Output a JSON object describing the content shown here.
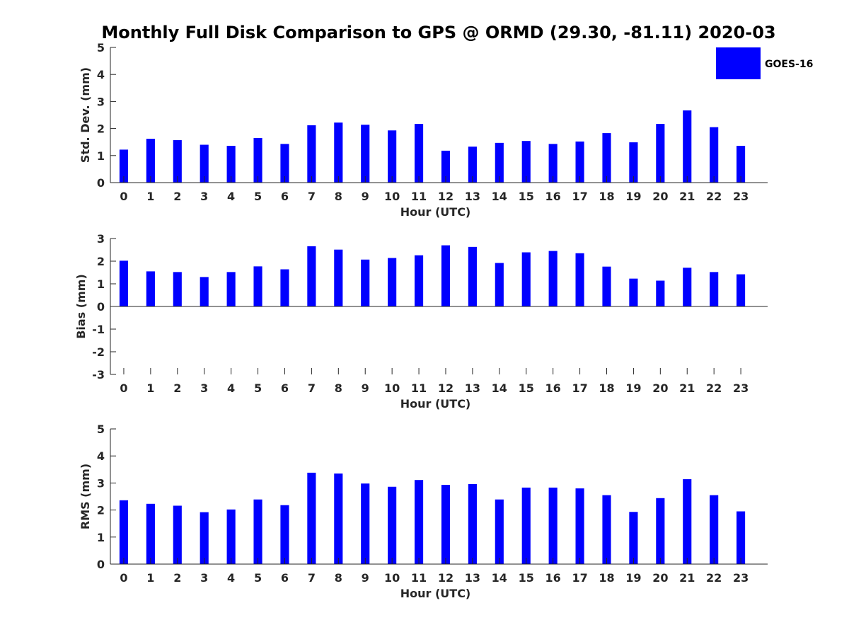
{
  "figure_title": "Monthly Full Disk Comparison to GPS @ ORMD (29.30, -81.11) 2020-03",
  "legend": {
    "label": "GOES-16",
    "color": "#0000ff",
    "placement": "top-right"
  },
  "chart_data": [
    {
      "type": "bar",
      "xlabel": "Hour (UTC)",
      "ylabel": "Std. Dev. (mm)",
      "categories": [
        "0",
        "1",
        "2",
        "3",
        "4",
        "5",
        "6",
        "7",
        "8",
        "9",
        "10",
        "11",
        "12",
        "13",
        "14",
        "15",
        "16",
        "17",
        "18",
        "19",
        "20",
        "21",
        "22",
        "23"
      ],
      "ylim": [
        0,
        5
      ],
      "yticks": [
        "0",
        "1",
        "2",
        "3",
        "4",
        "5"
      ],
      "series": [
        {
          "name": "GOES-16",
          "color": "#0000ff",
          "values": [
            1.22,
            1.62,
            1.57,
            1.4,
            1.36,
            1.65,
            1.43,
            2.12,
            2.22,
            2.14,
            1.93,
            2.17,
            1.18,
            1.33,
            1.47,
            1.54,
            1.43,
            1.52,
            1.83,
            1.49,
            2.17,
            2.67,
            2.05,
            1.36
          ]
        }
      ]
    },
    {
      "type": "bar",
      "xlabel": "Hour (UTC)",
      "ylabel": "Bias (mm)",
      "categories": [
        "0",
        "1",
        "2",
        "3",
        "4",
        "5",
        "6",
        "7",
        "8",
        "9",
        "10",
        "11",
        "12",
        "13",
        "14",
        "15",
        "16",
        "17",
        "18",
        "19",
        "20",
        "21",
        "22",
        "23"
      ],
      "ylim": [
        -3,
        3
      ],
      "yticks": [
        "-3",
        "-2",
        "-1",
        "0",
        "1",
        "2",
        "3"
      ],
      "series": [
        {
          "name": "GOES-16",
          "color": "#0000ff",
          "values": [
            2.02,
            1.55,
            1.52,
            1.3,
            1.52,
            1.77,
            1.64,
            2.66,
            2.51,
            2.07,
            2.14,
            2.26,
            2.7,
            2.63,
            1.92,
            2.39,
            2.45,
            2.35,
            1.76,
            1.23,
            1.14,
            1.71,
            1.52,
            1.42
          ]
        }
      ]
    },
    {
      "type": "bar",
      "xlabel": "Hour (UTC)",
      "ylabel": "RMS (mm)",
      "categories": [
        "0",
        "1",
        "2",
        "3",
        "4",
        "5",
        "6",
        "7",
        "8",
        "9",
        "10",
        "11",
        "12",
        "13",
        "14",
        "15",
        "16",
        "17",
        "18",
        "19",
        "20",
        "21",
        "22",
        "23"
      ],
      "ylim": [
        0,
        5
      ],
      "yticks": [
        "0",
        "1",
        "2",
        "3",
        "4",
        "5"
      ],
      "series": [
        {
          "name": "GOES-16",
          "color": "#0000ff",
          "values": [
            2.36,
            2.23,
            2.16,
            1.92,
            2.02,
            2.39,
            2.18,
            3.38,
            3.35,
            2.98,
            2.86,
            3.11,
            2.93,
            2.96,
            2.39,
            2.83,
            2.83,
            2.8,
            2.55,
            1.93,
            2.44,
            3.14,
            2.55,
            1.95
          ]
        }
      ]
    }
  ]
}
